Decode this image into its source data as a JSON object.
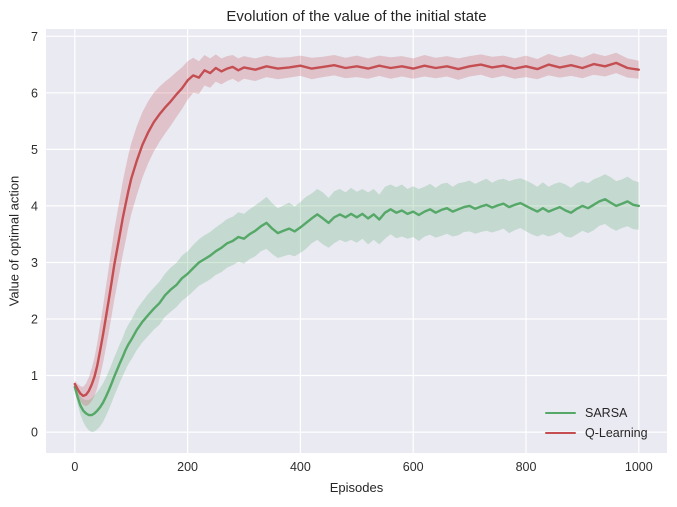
{
  "chart_data": {
    "type": "line",
    "title": "Evolution of the value of the initial state",
    "xlabel": "Episodes",
    "ylabel": "Value of optimal action",
    "xlim": [
      -51,
      1050
    ],
    "ylim": [
      -0.37,
      7.13
    ],
    "x_ticks": [
      0,
      200,
      400,
      600,
      800,
      1000
    ],
    "y_ticks": [
      0,
      1,
      2,
      3,
      4,
      5,
      6,
      7
    ],
    "grid": true,
    "legend_position": "lower right",
    "plot_background": "#eaeaf2",
    "grid_color": "#ffffff",
    "band_opacity": 0.25,
    "series": [
      {
        "name": "SARSA",
        "color": "#55a868",
        "x": [
          0,
          5,
          10,
          15,
          20,
          25,
          30,
          35,
          40,
          45,
          50,
          55,
          60,
          65,
          70,
          75,
          80,
          85,
          90,
          95,
          100,
          110,
          120,
          130,
          140,
          150,
          160,
          170,
          180,
          190,
          200,
          210,
          220,
          230,
          240,
          250,
          260,
          270,
          280,
          290,
          300,
          310,
          320,
          330,
          340,
          350,
          360,
          370,
          380,
          390,
          400,
          410,
          420,
          430,
          440,
          450,
          460,
          470,
          480,
          490,
          500,
          510,
          520,
          530,
          540,
          550,
          560,
          570,
          580,
          590,
          600,
          610,
          620,
          630,
          640,
          650,
          660,
          670,
          680,
          690,
          700,
          710,
          720,
          730,
          740,
          750,
          760,
          770,
          780,
          790,
          800,
          810,
          820,
          830,
          840,
          850,
          860,
          870,
          880,
          890,
          900,
          910,
          920,
          930,
          940,
          950,
          960,
          970,
          980,
          990,
          1000
        ],
        "y": [
          0.8,
          0.62,
          0.47,
          0.38,
          0.33,
          0.3,
          0.3,
          0.33,
          0.38,
          0.44,
          0.52,
          0.62,
          0.73,
          0.85,
          0.98,
          1.1,
          1.22,
          1.33,
          1.45,
          1.55,
          1.63,
          1.81,
          1.95,
          2.07,
          2.18,
          2.28,
          2.42,
          2.52,
          2.6,
          2.72,
          2.8,
          2.9,
          3.0,
          3.06,
          3.12,
          3.2,
          3.26,
          3.34,
          3.38,
          3.45,
          3.42,
          3.5,
          3.56,
          3.64,
          3.7,
          3.6,
          3.52,
          3.56,
          3.6,
          3.55,
          3.62,
          3.7,
          3.78,
          3.85,
          3.78,
          3.7,
          3.8,
          3.85,
          3.8,
          3.86,
          3.8,
          3.86,
          3.78,
          3.85,
          3.76,
          3.88,
          3.94,
          3.88,
          3.92,
          3.86,
          3.9,
          3.84,
          3.9,
          3.94,
          3.88,
          3.93,
          3.96,
          3.9,
          3.94,
          3.98,
          4.0,
          3.95,
          3.99,
          4.02,
          3.97,
          4.01,
          4.04,
          3.98,
          4.02,
          4.05,
          4.0,
          3.95,
          3.9,
          3.96,
          3.9,
          3.94,
          3.98,
          3.92,
          3.88,
          3.95,
          4.0,
          3.96,
          4.02,
          4.08,
          4.12,
          4.06,
          4.0,
          4.04,
          4.08,
          4.02,
          4.0
        ],
        "band_halfwidth": [
          0.08,
          0.12,
          0.16,
          0.2,
          0.24,
          0.27,
          0.3,
          0.32,
          0.33,
          0.34,
          0.34,
          0.34,
          0.34,
          0.34,
          0.34,
          0.34,
          0.34,
          0.34,
          0.35,
          0.35,
          0.35,
          0.36,
          0.36,
          0.37,
          0.37,
          0.38,
          0.38,
          0.39,
          0.39,
          0.4,
          0.4,
          0.41,
          0.41,
          0.42,
          0.42,
          0.42,
          0.43,
          0.43,
          0.43,
          0.44,
          0.44,
          0.44,
          0.45,
          0.44,
          0.46,
          0.45,
          0.44,
          0.45,
          0.46,
          0.44,
          0.45,
          0.46,
          0.44,
          0.45,
          0.46,
          0.44,
          0.46,
          0.45,
          0.44,
          0.46,
          0.45,
          0.44,
          0.46,
          0.45,
          0.44,
          0.46,
          0.44,
          0.45,
          0.46,
          0.44,
          0.45,
          0.46,
          0.44,
          0.45,
          0.44,
          0.46,
          0.45,
          0.44,
          0.46,
          0.44,
          0.45,
          0.44,
          0.45,
          0.46,
          0.44,
          0.45,
          0.44,
          0.46,
          0.45,
          0.44,
          0.45,
          0.45,
          0.44,
          0.46,
          0.44,
          0.45,
          0.44,
          0.46,
          0.44,
          0.45,
          0.44,
          0.44,
          0.45,
          0.43,
          0.44,
          0.45,
          0.44,
          0.43,
          0.44,
          0.43,
          0.42
        ]
      },
      {
        "name": "Q-Learning",
        "color": "#c44e52",
        "x": [
          0,
          5,
          10,
          15,
          20,
          25,
          30,
          35,
          40,
          45,
          50,
          55,
          60,
          65,
          70,
          75,
          80,
          85,
          90,
          95,
          100,
          110,
          120,
          130,
          140,
          150,
          160,
          170,
          180,
          190,
          200,
          210,
          220,
          230,
          240,
          250,
          260,
          270,
          280,
          290,
          300,
          320,
          340,
          360,
          380,
          400,
          420,
          440,
          460,
          480,
          500,
          520,
          540,
          560,
          580,
          600,
          620,
          640,
          660,
          680,
          700,
          720,
          740,
          760,
          780,
          800,
          820,
          840,
          860,
          880,
          900,
          920,
          940,
          960,
          980,
          1000
        ],
        "y": [
          0.85,
          0.76,
          0.68,
          0.64,
          0.66,
          0.73,
          0.84,
          0.98,
          1.18,
          1.44,
          1.72,
          2.02,
          2.32,
          2.63,
          2.95,
          3.23,
          3.5,
          3.78,
          4.02,
          4.26,
          4.48,
          4.8,
          5.08,
          5.3,
          5.48,
          5.62,
          5.74,
          5.85,
          5.97,
          6.08,
          6.22,
          6.31,
          6.27,
          6.4,
          6.35,
          6.44,
          6.38,
          6.43,
          6.46,
          6.4,
          6.45,
          6.41,
          6.47,
          6.43,
          6.45,
          6.48,
          6.43,
          6.46,
          6.49,
          6.44,
          6.47,
          6.43,
          6.48,
          6.44,
          6.47,
          6.43,
          6.48,
          6.44,
          6.47,
          6.42,
          6.47,
          6.5,
          6.45,
          6.48,
          6.43,
          6.47,
          6.42,
          6.5,
          6.45,
          6.49,
          6.44,
          6.51,
          6.47,
          6.53,
          6.44,
          6.41
        ],
        "band_halfwidth": [
          0.06,
          0.09,
          0.13,
          0.16,
          0.2,
          0.24,
          0.29,
          0.34,
          0.4,
          0.45,
          0.5,
          0.54,
          0.57,
          0.6,
          0.62,
          0.63,
          0.64,
          0.65,
          0.65,
          0.64,
          0.63,
          0.61,
          0.58,
          0.55,
          0.52,
          0.49,
          0.46,
          0.43,
          0.4,
          0.37,
          0.34,
          0.31,
          0.29,
          0.27,
          0.26,
          0.24,
          0.23,
          0.22,
          0.21,
          0.21,
          0.2,
          0.2,
          0.19,
          0.19,
          0.18,
          0.18,
          0.19,
          0.18,
          0.18,
          0.18,
          0.19,
          0.18,
          0.18,
          0.19,
          0.18,
          0.18,
          0.19,
          0.18,
          0.18,
          0.19,
          0.18,
          0.18,
          0.19,
          0.18,
          0.18,
          0.19,
          0.18,
          0.19,
          0.18,
          0.19,
          0.18,
          0.19,
          0.18,
          0.18,
          0.17,
          0.16
        ]
      }
    ]
  }
}
